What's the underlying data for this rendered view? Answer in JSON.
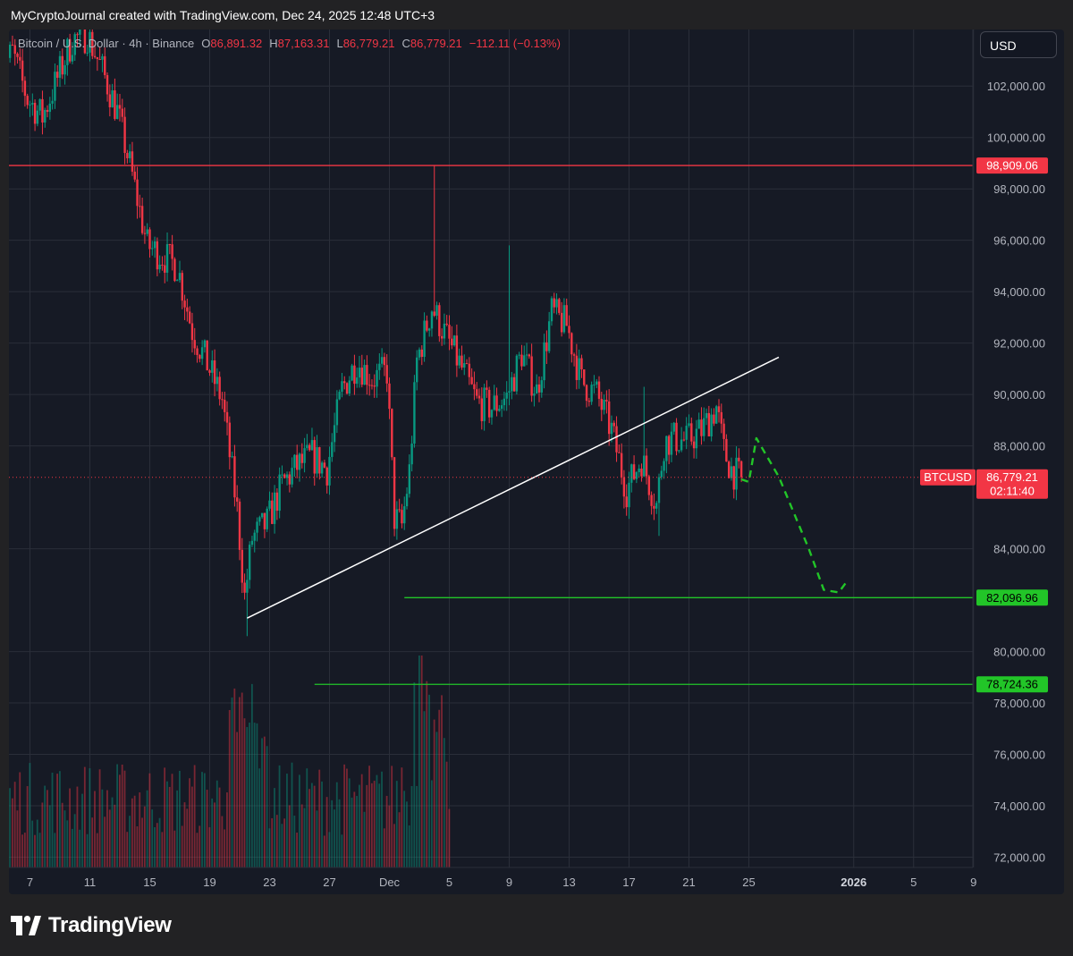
{
  "header": {
    "credit": "MyCryptoJournal created with TradingView.com, Dec 24, 2025 12:48 UTC+3"
  },
  "legend": {
    "symbol": "Bitcoin / U.S. Dollar · 4h · Binance",
    "open_label": "O",
    "open": "86,891.32",
    "high_label": "H",
    "high": "87,163.31",
    "low_label": "L",
    "low": "86,779.21",
    "close_label": "C",
    "close": "86,779.21",
    "change": "−112.11 (−0.13%)"
  },
  "currency_button": "USD",
  "footer": {
    "brand": "TradingView",
    "logo_icon": "tradingview-logo-icon"
  },
  "chart_data": {
    "type": "candlestick",
    "symbol": "BTCUSD",
    "interval": "4h",
    "exchange": "Binance",
    "ylim": [
      71600,
      104200
    ],
    "y_ticks": [
      {
        "value": 102000,
        "label": "102,000.00"
      },
      {
        "value": 100000,
        "label": "100,000.00"
      },
      {
        "value": 98000,
        "label": "98,000.00"
      },
      {
        "value": 96000,
        "label": "96,000.00"
      },
      {
        "value": 94000,
        "label": "94,000.00"
      },
      {
        "value": 92000,
        "label": "92,000.00"
      },
      {
        "value": 90000,
        "label": "90,000.00"
      },
      {
        "value": 88000,
        "label": "88,000.00"
      },
      {
        "value": 84000,
        "label": "84,000.00"
      },
      {
        "value": 80000,
        "label": "80,000.00"
      },
      {
        "value": 78000,
        "label": "78,000.00"
      },
      {
        "value": 76000,
        "label": "76,000.00"
      },
      {
        "value": 74000,
        "label": "74,000.00"
      },
      {
        "value": 72000,
        "label": "72,000.00"
      }
    ],
    "x_ticks": [
      {
        "date": "2025-11-07",
        "label": "7",
        "bold": false
      },
      {
        "date": "2025-11-11",
        "label": "11",
        "bold": false
      },
      {
        "date": "2025-11-15",
        "label": "15",
        "bold": false
      },
      {
        "date": "2025-11-19",
        "label": "19",
        "bold": false
      },
      {
        "date": "2025-11-23",
        "label": "23",
        "bold": false
      },
      {
        "date": "2025-11-27",
        "label": "27",
        "bold": false
      },
      {
        "date": "2025-12-01",
        "label": "Dec",
        "bold": false
      },
      {
        "date": "2025-12-05",
        "label": "5",
        "bold": false
      },
      {
        "date": "2025-12-09",
        "label": "9",
        "bold": false
      },
      {
        "date": "2025-12-13",
        "label": "13",
        "bold": false
      },
      {
        "date": "2025-12-17",
        "label": "17",
        "bold": false
      },
      {
        "date": "2025-12-21",
        "label": "21",
        "bold": false
      },
      {
        "date": "2025-12-25",
        "label": "25",
        "bold": false
      },
      {
        "date": "2026-01-01",
        "label": "2026",
        "bold": true
      },
      {
        "date": "2026-01-05",
        "label": "5",
        "bold": false
      },
      {
        "date": "2026-01-09",
        "label": "9",
        "bold": false
      }
    ],
    "price_path": [
      [
        "2025-11-05",
        102500
      ],
      [
        "2025-11-06",
        103300
      ],
      [
        "2025-11-07",
        101500
      ],
      [
        "2025-11-08",
        100800
      ],
      [
        "2025-11-09",
        102300
      ],
      [
        "2025-11-10",
        103800
      ],
      [
        "2025-11-11",
        104000
      ],
      [
        "2025-11-12",
        102600
      ],
      [
        "2025-11-13",
        101000
      ],
      [
        "2025-11-14",
        98500
      ],
      [
        "2025-11-15",
        95800
      ],
      [
        "2025-11-16",
        95400
      ],
      [
        "2025-11-17",
        95000
      ],
      [
        "2025-11-18",
        92500
      ],
      [
        "2025-11-19",
        91200
      ],
      [
        "2025-11-20",
        89800
      ],
      [
        "2025-11-21",
        85500
      ],
      [
        "2025-11-21 12:00",
        82100
      ],
      [
        "2025-11-22",
        84400
      ],
      [
        "2025-11-23",
        85000
      ],
      [
        "2025-11-24",
        86500
      ],
      [
        "2025-11-25",
        87200
      ],
      [
        "2025-11-26",
        87600
      ],
      [
        "2025-11-27",
        87100
      ],
      [
        "2025-11-28",
        90200
      ],
      [
        "2025-11-29",
        91300
      ],
      [
        "2025-11-30",
        90600
      ],
      [
        "2025-12-01",
        90900
      ],
      [
        "2025-12-01 12:00",
        85200
      ],
      [
        "2025-12-02",
        84900
      ],
      [
        "2025-12-02 12:00",
        87000
      ],
      [
        "2025-12-03",
        91300
      ],
      [
        "2025-12-04",
        93400
      ],
      [
        "2025-12-05",
        92200
      ],
      [
        "2025-12-06",
        91000
      ],
      [
        "2025-12-07",
        89700
      ],
      [
        "2025-12-08",
        89500
      ],
      [
        "2025-12-09",
        89900
      ],
      [
        "2025-12-10",
        91600
      ],
      [
        "2025-12-11",
        90100
      ],
      [
        "2025-12-12",
        93200
      ],
      [
        "2025-12-13",
        92700
      ],
      [
        "2025-12-14",
        90500
      ],
      [
        "2025-12-15",
        90000
      ],
      [
        "2025-12-16",
        88600
      ],
      [
        "2025-12-17",
        86300
      ],
      [
        "2025-12-18",
        87500
      ],
      [
        "2025-12-19",
        85700
      ],
      [
        "2025-12-19 12:00",
        88100
      ],
      [
        "2025-12-20",
        88300
      ],
      [
        "2025-12-21",
        88200
      ],
      [
        "2025-12-22",
        88600
      ],
      [
        "2025-12-23",
        89500
      ],
      [
        "2025-12-23 12:00",
        87800
      ],
      [
        "2025-12-24",
        87100
      ],
      [
        "2025-12-24 12:00",
        86779
      ]
    ],
    "spike_wicks": [
      {
        "date": "2025-12-04",
        "high": 98900
      },
      {
        "date": "2025-12-09",
        "high": 95800
      },
      {
        "date": "2025-12-18",
        "high": 90300
      },
      {
        "date": "2025-11-21 12:00",
        "low": 80600
      },
      {
        "date": "2025-12-19",
        "low": 84500
      }
    ],
    "horizontal_levels": [
      {
        "price": 98909.06,
        "label": "98,909.06",
        "color": "#f23645",
        "from_date": "2025-11-05"
      },
      {
        "price": 82096.96,
        "label": "82,096.96",
        "color": "#22c528",
        "from_date": "2025-12-02"
      },
      {
        "price": 78724.36,
        "label": "78,724.36",
        "color": "#22c528",
        "from_date": "2025-11-26"
      }
    ],
    "trendline": {
      "from": [
        "2025-11-21 12:00",
        81300
      ],
      "to": [
        "2025-12-27",
        91450
      ],
      "color": "#ffffff"
    },
    "projection_path": [
      [
        "2025-12-24 12:00",
        86700
      ],
      [
        "2025-12-25",
        86600
      ],
      [
        "2025-12-25 12:00",
        88300
      ],
      [
        "2025-12-27",
        86800
      ],
      [
        "2025-12-29",
        84000
      ],
      [
        "2025-12-30",
        82400
      ],
      [
        "2025-12-31",
        82300
      ],
      [
        "2025-12-31 12:00",
        82700
      ]
    ],
    "projection_color": "#22c528",
    "last_price": {
      "price": 86779.21,
      "label": "86,779.21",
      "symbol_label": "BTCUSD",
      "countdown": "02:11:40",
      "color": "#f23645"
    },
    "colors": {
      "up": "#089981",
      "down": "#f23645",
      "background": "#161a25",
      "grid": "#2a2e39"
    },
    "volume_pane": true
  }
}
